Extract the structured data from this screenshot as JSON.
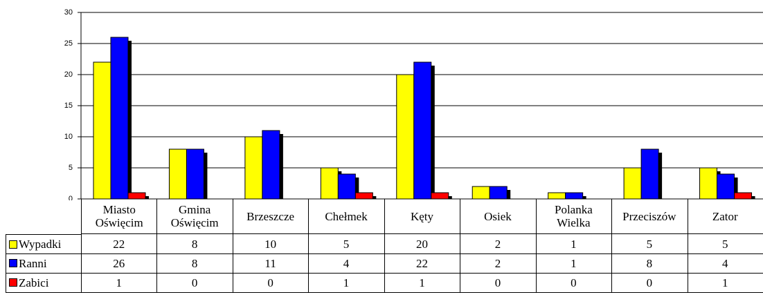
{
  "chart_data": {
    "type": "bar",
    "categories": [
      "Miasto Oświęcim",
      "Gmina Oświęcim",
      "Brzeszcze",
      "Chełmek",
      "Kęty",
      "Osiek",
      "Polanka Wielka",
      "Przeciszów",
      "Zator"
    ],
    "series": [
      {
        "name": "Wypadki",
        "color": "#ffff00",
        "values": [
          22,
          8,
          10,
          5,
          20,
          2,
          1,
          5,
          5
        ]
      },
      {
        "name": "Ranni",
        "color": "#0000ff",
        "values": [
          26,
          8,
          11,
          4,
          22,
          2,
          1,
          8,
          4
        ]
      },
      {
        "name": "Zabici",
        "color": "#ff0000",
        "values": [
          1,
          0,
          0,
          1,
          1,
          0,
          0,
          0,
          1
        ]
      }
    ],
    "ylim": [
      0,
      30
    ],
    "yticks": [
      0,
      5,
      10,
      15,
      20,
      25,
      30
    ],
    "grid": true,
    "data_table": true
  }
}
